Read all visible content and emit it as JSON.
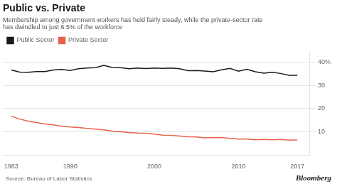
{
  "chart_data": {
    "type": "line",
    "title": "Public vs. Private",
    "subtitle": "Membership among government workers has held fairly steady, while the private-sector rate\nhas dwindled to just 6.5% of the workforce",
    "annotations": [
      "Source: Bureau of Labor Statistics",
      "Bloomberg"
    ],
    "x": [
      1983,
      1984,
      1985,
      1986,
      1987,
      1988,
      1989,
      1990,
      1991,
      1992,
      1993,
      1994,
      1995,
      1996,
      1997,
      1998,
      1999,
      2000,
      2001,
      2002,
      2003,
      2004,
      2005,
      2006,
      2007,
      2008,
      2009,
      2010,
      2011,
      2012,
      2013,
      2014,
      2015,
      2016,
      2017
    ],
    "series": [
      {
        "name": "Public Sector",
        "color": "#1a1a1a",
        "values": [
          36.7,
          35.8,
          35.7,
          36.0,
          36.0,
          36.7,
          36.9,
          36.5,
          37.2,
          37.5,
          37.7,
          38.7,
          37.8,
          37.7,
          37.2,
          37.5,
          37.3,
          37.5,
          37.4,
          37.5,
          37.2,
          36.4,
          36.5,
          36.2,
          35.9,
          36.8,
          37.4,
          36.2,
          37.0,
          35.9,
          35.3,
          35.7,
          35.2,
          34.4,
          34.4
        ]
      },
      {
        "name": "Private Sector",
        "color": "#e8614a",
        "values": [
          16.8,
          15.5,
          14.6,
          14.0,
          13.4,
          13.0,
          12.4,
          12.1,
          11.9,
          11.5,
          11.2,
          10.9,
          10.3,
          10.0,
          9.7,
          9.5,
          9.4,
          9.0,
          8.6,
          8.5,
          8.2,
          7.9,
          7.8,
          7.4,
          7.5,
          7.6,
          7.2,
          6.9,
          6.9,
          6.6,
          6.7,
          6.6,
          6.7,
          6.4,
          6.5
        ]
      }
    ],
    "xlim": [
      1982,
      2018.5
    ],
    "xticks": [
      1983,
      1990,
      2000,
      2010,
      2017
    ],
    "ylim": [
      0,
      45
    ],
    "yticks": [
      10,
      20,
      30,
      {
        "value": 40,
        "label": "40%"
      }
    ],
    "grid": "y",
    "legend": "upper left"
  }
}
